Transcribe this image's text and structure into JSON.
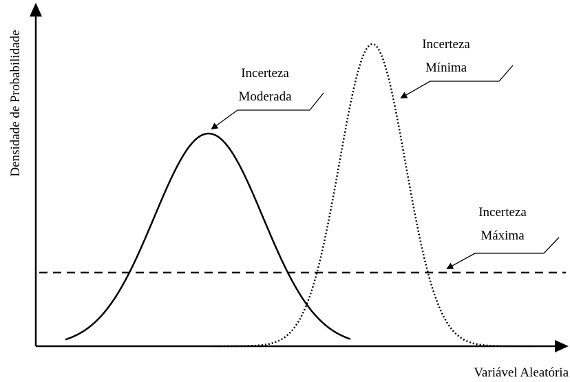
{
  "axes": {
    "y_label": "Densidade de Probabilidade",
    "x_label": "Variável Aleatória"
  },
  "annotations": [
    {
      "line1": "Incerteza",
      "line2": "Moderada"
    },
    {
      "line1": "Incerteza",
      "line2": "Mínima"
    },
    {
      "line1": "Incerteza",
      "line2": "Máxima"
    }
  ]
}
